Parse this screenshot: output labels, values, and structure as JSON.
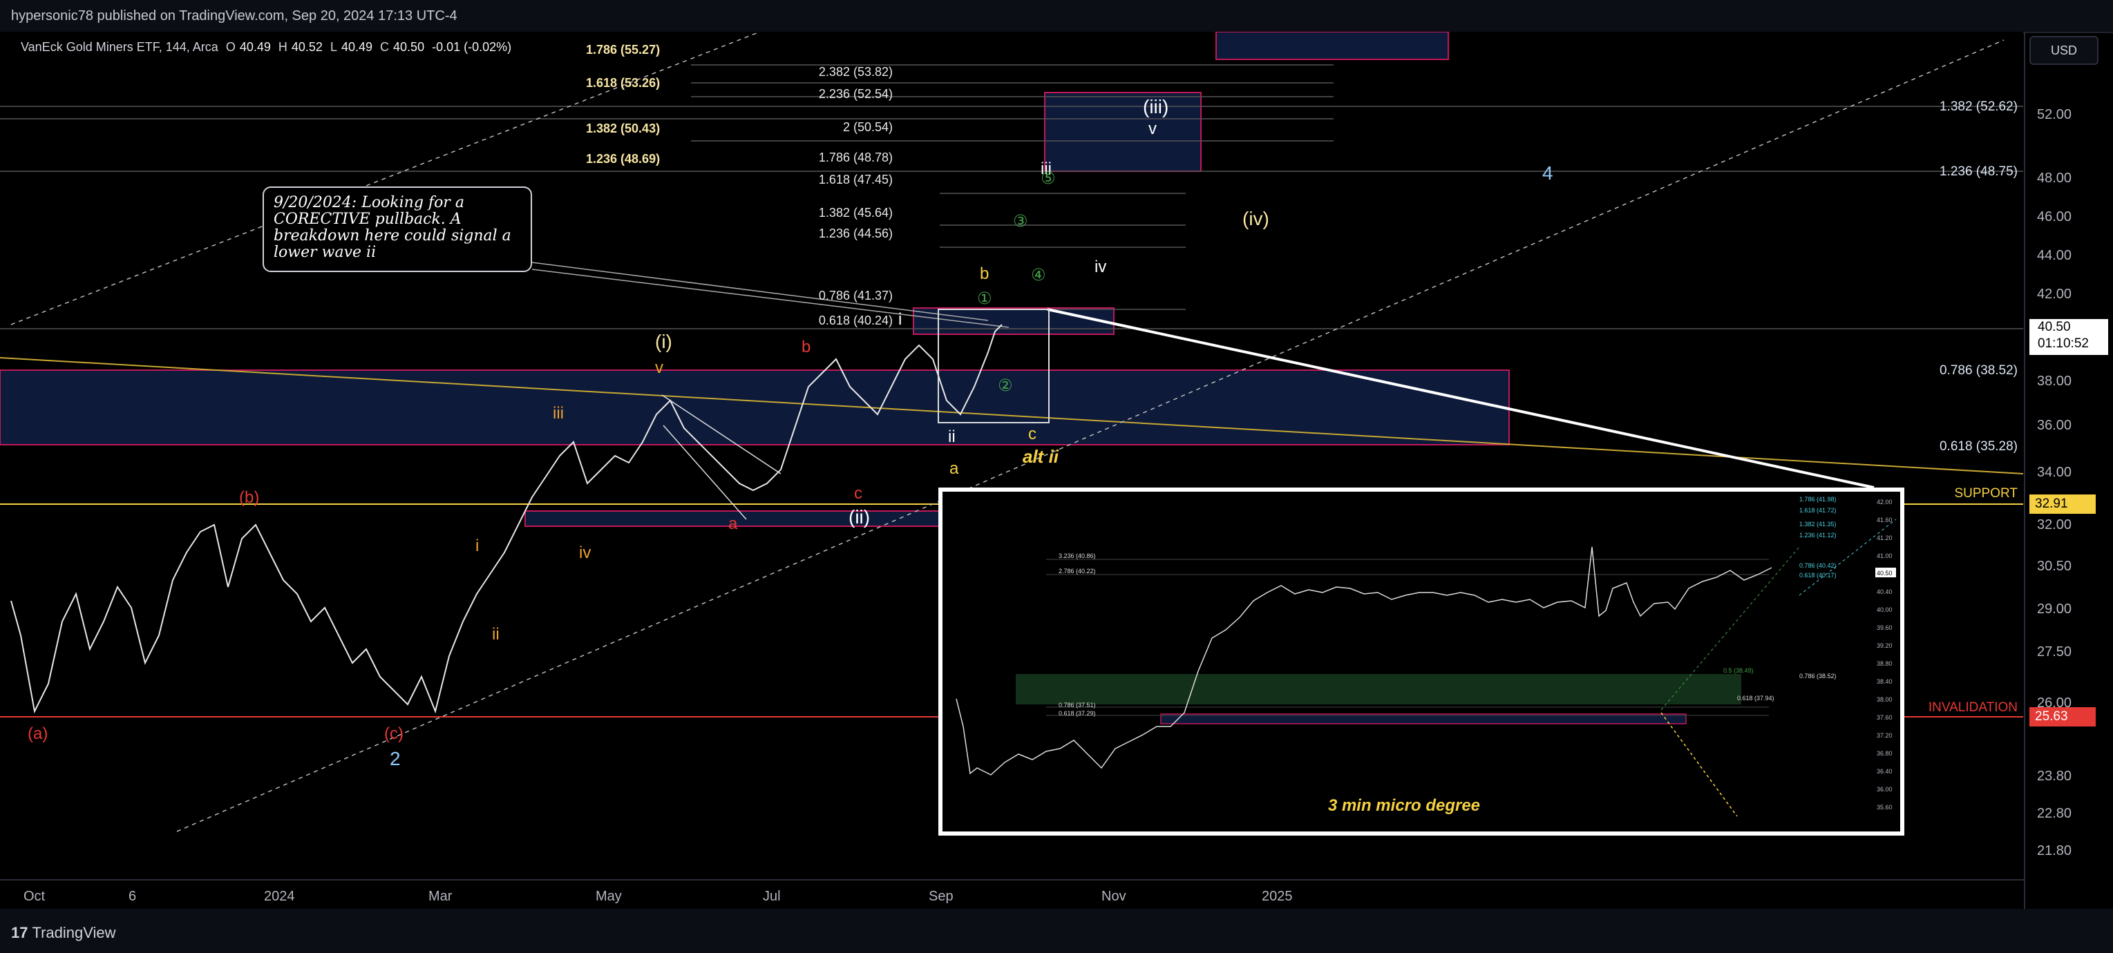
{
  "header": {
    "publisher": "hypersonic78 published on TradingView.com, Sep 20, 2024 17:13 UTC-4"
  },
  "legend": {
    "symbol": "VanEck Gold Miners ETF, 144, Arca",
    "open_label": "O",
    "open": "40.49",
    "high_label": "H",
    "high": "40.52",
    "low_label": "L",
    "low": "40.49",
    "close_label": "C",
    "close": "40.50",
    "change": "-0.01 (-0.02%)"
  },
  "currency": "USD",
  "price_axis": {
    "ticks": [
      "52.00",
      "48.00",
      "46.00",
      "44.00",
      "42.00",
      "38.00",
      "36.00",
      "34.00",
      "32.00",
      "30.50",
      "29.00",
      "27.50",
      "26.00",
      "23.80",
      "22.80",
      "21.80"
    ],
    "last_price": "40.50",
    "countdown": "01:10:52"
  },
  "time_axis": {
    "ticks": [
      "Oct",
      "6",
      "2024",
      "Mar",
      "May",
      "Jul",
      "Sep",
      "Nov",
      "2025"
    ]
  },
  "fib_left": [
    "1.786 (55.27)",
    "1.618 (53.26)",
    "1.382 (50.43)",
    "1.236 (48.69)"
  ],
  "fib_mid": [
    "2.382 (53.82)",
    "2.236 (52.54)",
    "2 (50.54)",
    "1.786 (48.78)",
    "1.618 (47.45)",
    "1.382 (45.64)",
    "1.236 (44.56)",
    "0.786 (41.37)",
    "0.618 (40.24)"
  ],
  "fib_right": [
    "1.382 (52.62)",
    "1.236 (48.75)",
    "0.786 (38.52)",
    "0.618 (35.28)"
  ],
  "levels": {
    "support_label": "SUPPORT",
    "support_value": "32.91",
    "invalidation_label": "INVALIDATION",
    "invalidation_value": "25.63"
  },
  "waves": {
    "a_paren": "(a)",
    "b_paren": "(b)",
    "c_paren": "(c)",
    "two": "2",
    "four": "4",
    "i_orange": "i",
    "ii_orange": "ii",
    "iii_orange": "iii",
    "iv_orange": "iv",
    "v_orange": "v",
    "i_paren": "(i)",
    "ii_paren": "(ii)",
    "iii_paren": "(iii)",
    "iv_paren": "(iv)",
    "red_b": "b",
    "red_a": "a",
    "red_c": "c",
    "i_white": "i",
    "ii_white": "ii",
    "iii_white": "iii",
    "iv_white": "iv",
    "v_white": "v",
    "yellow_a": "a",
    "yellow_b": "b",
    "yellow_c": "c",
    "alt_ii": "alt ii",
    "g1": "①",
    "g2": "②",
    "g3": "③",
    "g4": "④",
    "g5": "⑤"
  },
  "note_text": "9/20/2024: Looking for a CORECTIVE pullback. A breakdown here could signal a lower wave ii",
  "inset": {
    "caption": "3 min micro degree",
    "fib_labels_left": [
      "3.236 (40.86)",
      "2.786 (40.22)",
      "0.786 (37.51)",
      "0.618 (37.29)"
    ],
    "fib_labels_right": [
      "1.786 (41.98)",
      "1.618 (41.72)",
      "1.382 (41.35)",
      "1.236 (41.12)",
      "0.786 (40.42)",
      "0.618 (40.17)",
      "0.786 (38.52)",
      "0.618 (37.94)",
      "0.5 (38.49)"
    ],
    "axis": [
      "42.00",
      "41.60",
      "41.20",
      "41.00",
      "40.80",
      "40.40",
      "40.00",
      "39.60",
      "39.20",
      "38.80",
      "38.40",
      "38.00",
      "37.60",
      "37.20",
      "36.80",
      "36.40",
      "36.00",
      "35.60"
    ],
    "price_tag": "40.50"
  },
  "branding": {
    "logo_text": "TradingView"
  },
  "colors": {
    "bg": "#000000",
    "zone_fill": "#0d1a3a",
    "zone_border": "#c2185b",
    "yellow": "#f5d142",
    "orange": "#f0a030",
    "red": "#e53935",
    "green": "#43a047",
    "blue_label": "#90caf9"
  }
}
